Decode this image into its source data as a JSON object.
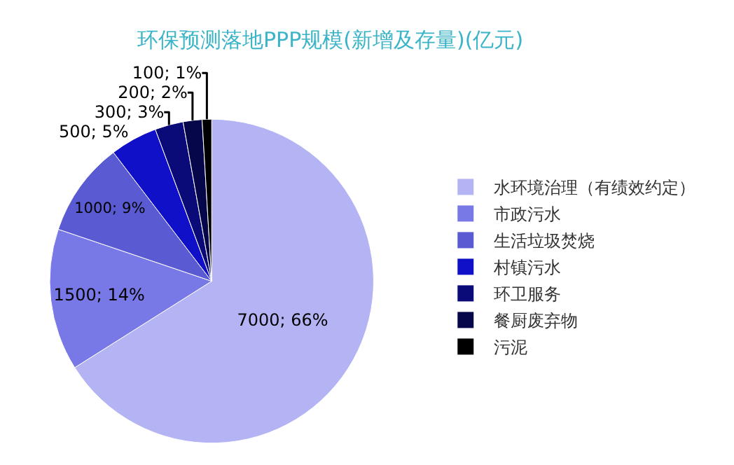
{
  "chart_data": {
    "type": "pie",
    "title": "环保预测落地PPP规模(新增及存量)(亿元)",
    "categories": [
      "水环境治理（有绩效约定）",
      "市政污水",
      "生活垃圾焚烧",
      "村镇污水",
      "环卫服务",
      "餐厨废弃物",
      "污泥"
    ],
    "values": [
      7000,
      1500,
      1000,
      500,
      300,
      200,
      100
    ],
    "value_labels": [
      "7000; 66%",
      "1500; 14%",
      "1000; 9%",
      "500; 5%",
      "300; 3%",
      "200; 2%",
      "100; 1%"
    ],
    "colors": [
      "#b4b4f5",
      "#7878e6",
      "#5a5ad2",
      "#1010c8",
      "#0a0a78",
      "#06064a",
      "#000000"
    ],
    "legend": "right"
  }
}
